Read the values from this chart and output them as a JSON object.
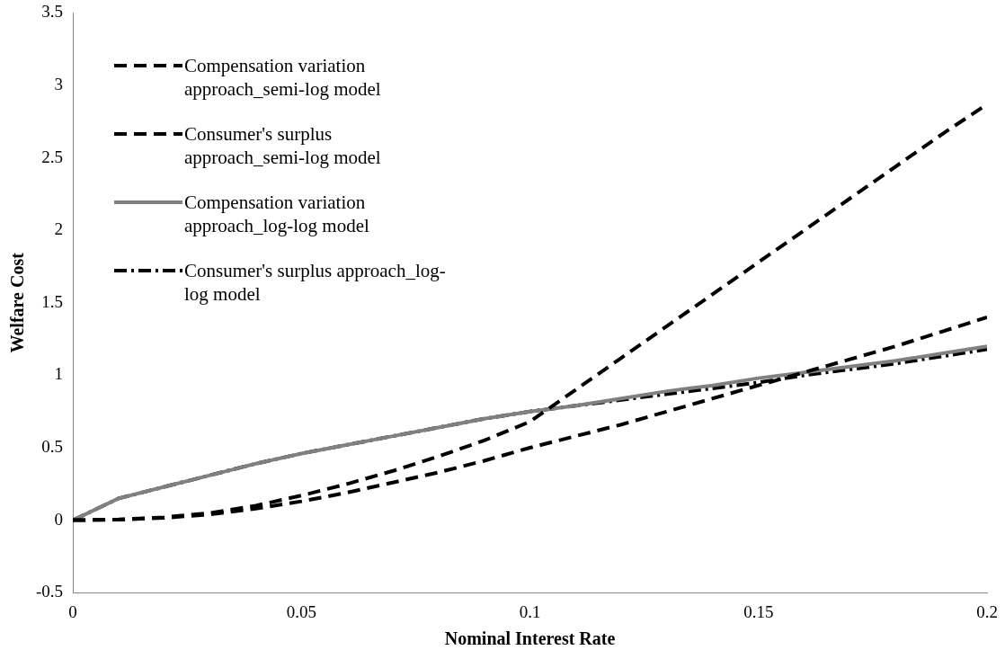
{
  "chart_data": {
    "type": "line",
    "xlabel": "Nominal Interest Rate",
    "ylabel": "Welfare Cost",
    "x": [
      0,
      0.01,
      0.02,
      0.03,
      0.04,
      0.05,
      0.06,
      0.07,
      0.08,
      0.09,
      0.1,
      0.11,
      0.12,
      0.13,
      0.14,
      0.15,
      0.16,
      0.17,
      0.18,
      0.19,
      0.2
    ],
    "series": [
      {
        "name": "Compensation variation approach_semi-log model",
        "color": "#000000",
        "line_style": "dashed",
        "values": [
          0,
          0.005,
          0.02,
          0.05,
          0.1,
          0.17,
          0.25,
          0.34,
          0.44,
          0.55,
          0.68,
          0.9,
          1.12,
          1.34,
          1.56,
          1.78,
          2,
          2.22,
          2.44,
          2.66,
          2.87
        ]
      },
      {
        "name": "Consumer's surplus approach_semi-log model",
        "color": "#000000",
        "line_style": "dashed",
        "values": [
          0,
          0.004,
          0.016,
          0.04,
          0.08,
          0.13,
          0.19,
          0.26,
          0.33,
          0.41,
          0.5,
          0.58,
          0.66,
          0.75,
          0.84,
          0.93,
          1.02,
          1.11,
          1.2,
          1.3,
          1.4
        ]
      },
      {
        "name": "Compensation variation approach_log-log model",
        "color": "#808080",
        "line_style": "solid",
        "values": [
          0,
          0.15,
          0.23,
          0.31,
          0.39,
          0.46,
          0.52,
          0.58,
          0.64,
          0.7,
          0.75,
          0.79,
          0.84,
          0.89,
          0.93,
          0.98,
          1.02,
          1.06,
          1.1,
          1.15,
          1.2
        ]
      },
      {
        "name": "Consumer's surplus approach_log-log model",
        "color": "#000000",
        "line_style": "dotted",
        "values": [
          0,
          0.15,
          0.23,
          0.31,
          0.39,
          0.46,
          0.52,
          0.58,
          0.64,
          0.7,
          0.75,
          0.79,
          0.83,
          0.87,
          0.91,
          0.95,
          1,
          1.04,
          1.08,
          1.13,
          1.18
        ]
      }
    ],
    "xlim": [
      0,
      0.2
    ],
    "xticks": [
      0,
      0.05,
      0.1,
      0.15,
      0.2
    ],
    "ylim": [
      -0.5,
      3.5
    ],
    "yticks": [
      -0.5,
      0,
      0.5,
      1,
      1.5,
      2,
      2.5,
      3,
      3.5
    ],
    "grid": false,
    "legend": "top left",
    "marker": "none"
  }
}
